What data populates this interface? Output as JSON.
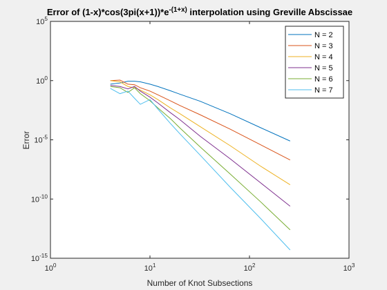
{
  "chart_data": {
    "type": "line",
    "title": "Error of (1-x)*cos(3pi(x+1))*e^{-(1+x)} interpolation using Greville Abscissae",
    "xlabel": "Number of Knot Subsections",
    "ylabel": "Error",
    "xscale": "log",
    "yscale": "log",
    "xlim": [
      1,
      1000
    ],
    "ylim": [
      1e-15,
      100000
    ],
    "xticks": [
      {
        "value": 1,
        "label": "10^{0}"
      },
      {
        "value": 10,
        "label": "10^{1}"
      },
      {
        "value": 100,
        "label": "10^{2}"
      },
      {
        "value": 1000,
        "label": "10^{3}"
      }
    ],
    "yticks": [
      {
        "value": 1e-15,
        "label": "10^{-15}"
      },
      {
        "value": 1e-10,
        "label": "10^{-10}"
      },
      {
        "value": 1e-05,
        "label": "10^{-5}"
      },
      {
        "value": 1,
        "label": "10^{0}"
      },
      {
        "value": 100000,
        "label": "10^{5}"
      }
    ],
    "legend": "northeast",
    "x": [
      4,
      5,
      6,
      7,
      8,
      10,
      12,
      16,
      20,
      32,
      64,
      128,
      256
    ],
    "series": [
      {
        "name": "N = 2",
        "color": "#0072BD",
        "values": [
          0.5,
          0.63,
          0.89,
          0.89,
          0.79,
          0.5,
          0.32,
          0.14,
          0.071,
          0.018,
          0.0016,
          0.00011,
          7.9e-06
        ]
      },
      {
        "name": "N = 3",
        "color": "#D95319",
        "values": [
          1,
          1.1,
          0.5,
          0.45,
          0.25,
          0.13,
          0.063,
          0.02,
          0.0079,
          0.0013,
          7.9e-05,
          4e-06,
          2e-07
        ]
      },
      {
        "name": "N = 4",
        "color": "#EDB120",
        "values": [
          1,
          0.79,
          0.32,
          0.25,
          0.16,
          0.063,
          0.025,
          0.005,
          0.0016,
          0.00013,
          3.2e-06,
          6.3e-08,
          1.6e-09
        ]
      },
      {
        "name": "N = 5",
        "color": "#7E2F8E",
        "values": [
          0.4,
          0.32,
          0.2,
          0.32,
          0.13,
          0.04,
          0.013,
          0.002,
          0.0005,
          2e-05,
          2.5e-07,
          2.5e-09,
          2.5e-11
        ]
      },
      {
        "name": "N = 6",
        "color": "#77AC30",
        "values": [
          0.32,
          0.25,
          0.1,
          0.25,
          0.079,
          0.02,
          0.005,
          0.00063,
          0.0001,
          2.5e-06,
          1.3e-08,
          6.3e-11,
          2.5e-13
        ]
      },
      {
        "name": "N = 7",
        "color": "#4DBEEE",
        "values": [
          0.22,
          0.079,
          0.13,
          0.032,
          0.01,
          0.025,
          0.004,
          0.00025,
          3.2e-05,
          5e-07,
          1e-09,
          2.5e-12,
          5e-15
        ]
      }
    ]
  }
}
